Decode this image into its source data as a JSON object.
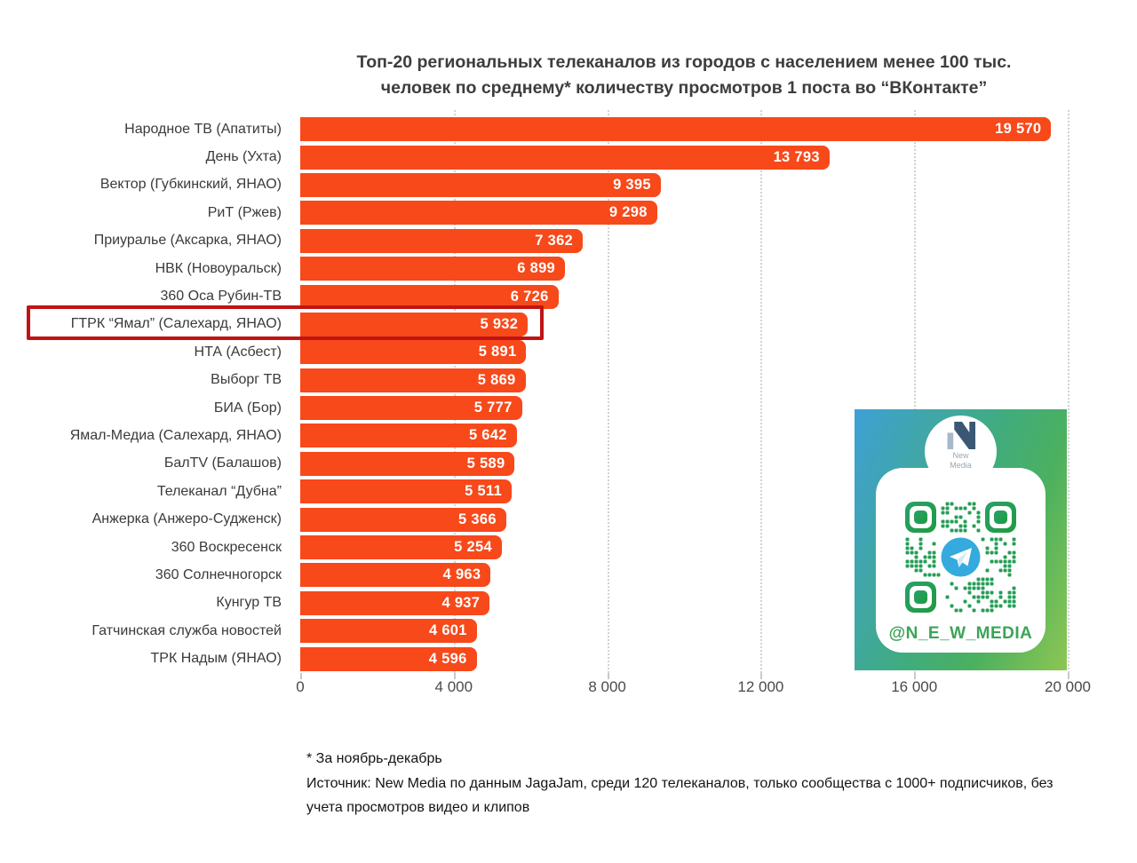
{
  "title": {
    "line1": "Топ-20 региональных телеканалов из городов с населением менее 100 тыс.",
    "line2": "человек по среднему* количеству просмотров 1 поста во “ВКонтакте”"
  },
  "chart_data": {
    "type": "bar",
    "orientation": "horizontal",
    "title": "Топ-20 региональных телеканалов из городов с населением менее 100 тыс. человек по среднему* количеству просмотров 1 поста во “ВКонтакте”",
    "categories": [
      "Народное ТВ (Апатиты)",
      "День (Ухта)",
      "Вектор (Губкинский, ЯНАО)",
      "РиТ (Ржев)",
      "Приуралье (Аксарка, ЯНАО)",
      "НВК (Новоуральск)",
      "360 Оса Рубин-ТВ",
      "ГТРК “Ямал” (Салехард, ЯНАО)",
      "НТА (Асбест)",
      "Выборг ТВ",
      "БИА (Бор)",
      "Ямал-Медиа (Салехард, ЯНАО)",
      "БалTV (Балашов)",
      "Телеканал “Дубна”",
      "Анжерка (Анжеро-Судженск)",
      "360 Воскресенск",
      "360 Солнечногорск",
      "Кунгур ТВ",
      "Гатчинская служба новостей",
      "ТРК Надым (ЯНАО)"
    ],
    "values": [
      19570,
      13793,
      9395,
      9298,
      7362,
      6899,
      6726,
      5932,
      5891,
      5869,
      5777,
      5642,
      5589,
      5511,
      5366,
      5254,
      4963,
      4937,
      4601,
      4596
    ],
    "value_labels": [
      "19 570",
      "13 793",
      "9 395",
      "9 298",
      "7 362",
      "6 899",
      "6 726",
      "5 932",
      "5 891",
      "5 869",
      "5 777",
      "5 642",
      "5 589",
      "5 511",
      "5 366",
      "5 254",
      "4 963",
      "4 937",
      "4 601",
      "4 596"
    ],
    "x_ticks": [
      "0",
      "4 000",
      "8 000",
      "12 000",
      "16 000",
      "20 000"
    ],
    "xlim": [
      0,
      20000
    ],
    "grid": "dotted-vertical",
    "legend": "none",
    "highlight_index": 7,
    "highlighted_category": "ГТРК “Ямал” (Салехард, ЯНАО)",
    "bar_color": "#F7491A",
    "highlight_border_color": "#C01414"
  },
  "footnote": {
    "line1": "* За ноябрь-декабрь",
    "line2": "Источник: New Media по данным JagaJam, среди 120 телеканалов, только сообщества с 1000+ подписчиков, без учета просмотров видео и клипов"
  },
  "promo_card": {
    "logo_line1": "New",
    "logo_line2": "Media",
    "handle": "@N_E_W_MEDIA",
    "gradient_colors": [
      "#3FA0D6",
      "#46AE67",
      "#8DC653"
    ],
    "qr_color": "#2E9C4D",
    "telegram_blue": "#34AADF"
  }
}
